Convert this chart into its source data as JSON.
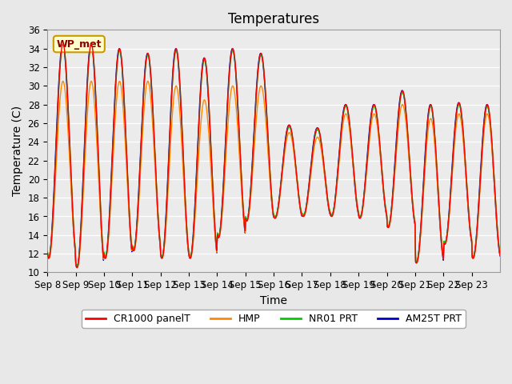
{
  "title": "Temperatures",
  "xlabel": "Time",
  "ylabel": "Temperature (C)",
  "ylim": [
    10,
    36
  ],
  "yticks": [
    10,
    12,
    14,
    16,
    18,
    20,
    22,
    24,
    26,
    28,
    30,
    32,
    34,
    36
  ],
  "x_labels": [
    "Sep 8",
    "Sep 9",
    "Sep 10",
    "Sep 11",
    "Sep 12",
    "Sep 13",
    "Sep 14",
    "Sep 15",
    "Sep 16",
    "Sep 17",
    "Sep 18",
    "Sep 19",
    "Sep 20",
    "Sep 21",
    "Sep 22",
    "Sep 23"
  ],
  "annotation_text": "WP_met",
  "annotation_bg": "#FFFFCC",
  "annotation_border": "#CC9900",
  "legend_entries": [
    "CR1000 panelT",
    "HMP",
    "NR01 PRT",
    "AM25T PRT"
  ],
  "legend_colors": [
    "#FF0000",
    "#FF8800",
    "#00CC00",
    "#0000CC"
  ],
  "background_color": "#E8E8E8",
  "axes_bg": "#EBEBEB",
  "grid_color": "#FFFFFF",
  "title_fontsize": 12,
  "label_fontsize": 10,
  "tick_fontsize": 8.5,
  "day_peaks": [
    34.5,
    34.5,
    34.0,
    33.5,
    34.0,
    33.0,
    34.0,
    33.5,
    25.8,
    25.5,
    28.0,
    28.0,
    29.5,
    28.0,
    28.2,
    28.0
  ],
  "day_troughs": [
    11.5,
    10.5,
    11.5,
    12.3,
    11.5,
    11.5,
    13.7,
    15.5,
    15.8,
    16.0,
    16.0,
    15.8,
    14.8,
    11.0,
    13.0,
    11.5
  ],
  "hmp_peaks": [
    30.5,
    30.5,
    30.5,
    30.5,
    30.0,
    28.5,
    30.0,
    30.0,
    25.0,
    24.5,
    27.0,
    27.0,
    28.0,
    26.5,
    27.0,
    27.0
  ],
  "n_days": 16,
  "pts_per_day": 48
}
